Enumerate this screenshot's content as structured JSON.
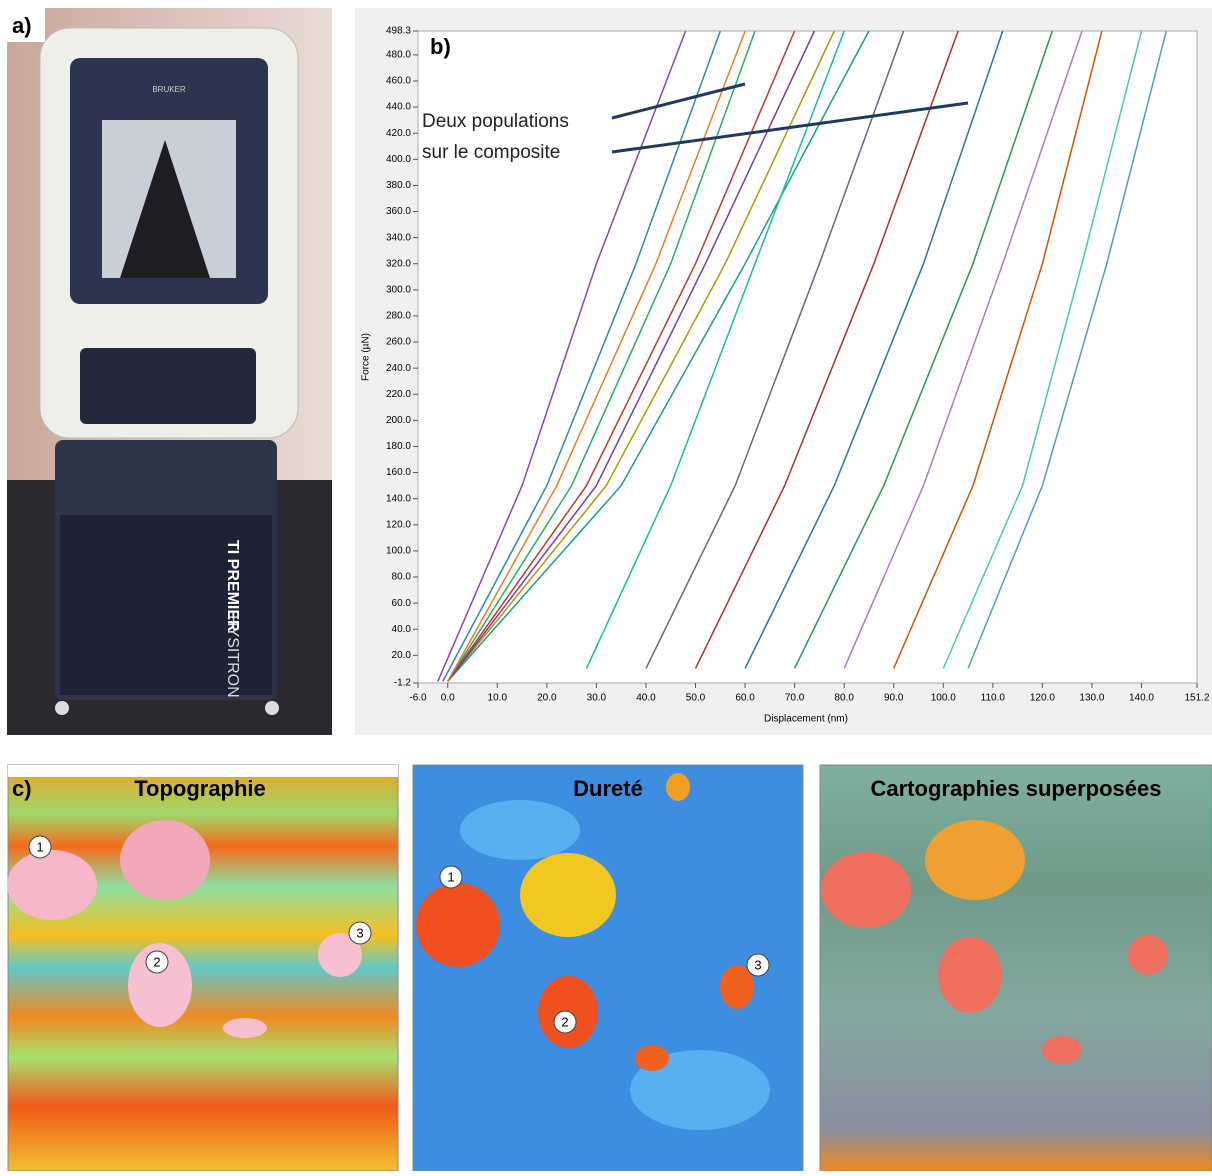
{
  "panel_a": {
    "label": "a)",
    "brand": "BRUKER",
    "model_line1": "HYSITRON",
    "model_line2": "TI PREMIER"
  },
  "chart_data": {
    "type": "line",
    "panel_label": "b)",
    "x_label": "Displacement (nm)",
    "y_label": "Force (µN)",
    "annotations": [
      "Deux populations",
      "sur le composite"
    ],
    "xlim": [
      -6,
      151.2
    ],
    "ylim": [
      -1.2,
      498.3
    ],
    "xticks": [
      {
        "value": -6,
        "label": "-6.0"
      },
      {
        "value": 0,
        "label": "0.0"
      },
      {
        "value": 10,
        "label": "10.0"
      },
      {
        "value": 20,
        "label": "20.0"
      },
      {
        "value": 30,
        "label": "30.0"
      },
      {
        "value": 40,
        "label": "40.0"
      },
      {
        "value": 50,
        "label": "50.0"
      },
      {
        "value": 60,
        "label": "60.0"
      },
      {
        "value": 70,
        "label": "70.0"
      },
      {
        "value": 80,
        "label": "80.0"
      },
      {
        "value": 90,
        "label": "90.0"
      },
      {
        "value": 100,
        "label": "100.0"
      },
      {
        "value": 110,
        "label": "110.0"
      },
      {
        "value": 120,
        "label": "120.0"
      },
      {
        "value": 130,
        "label": "130.0"
      },
      {
        "value": 140,
        "label": "140.0"
      },
      151.2
    ],
    "yticks": [
      -1.2,
      {
        "value": 20,
        "label": "20.0"
      },
      {
        "value": 40,
        "label": "40.0"
      },
      {
        "value": 60,
        "label": "60.0"
      },
      {
        "value": 80,
        "label": "80.0"
      },
      {
        "value": 100,
        "label": "100.0"
      },
      {
        "value": 120,
        "label": "120.0"
      },
      {
        "value": 140,
        "label": "140.0"
      },
      {
        "value": 160,
        "label": "160.0"
      },
      {
        "value": 180,
        "label": "180.0"
      },
      {
        "value": 200,
        "label": "200.0"
      },
      {
        "value": 220,
        "label": "220.0"
      },
      {
        "value": 240,
        "label": "240.0"
      },
      {
        "value": 260,
        "label": "260.0"
      },
      {
        "value": 280,
        "label": "280.0"
      },
      {
        "value": 300,
        "label": "300.0"
      },
      {
        "value": 320,
        "label": "320.0"
      },
      {
        "value": 340,
        "label": "340.0"
      },
      {
        "value": 360,
        "label": "360.0"
      },
      {
        "value": 380,
        "label": "380.0"
      },
      {
        "value": 400,
        "label": "400.0"
      },
      {
        "value": 420,
        "label": "420.0"
      },
      {
        "value": 440,
        "label": "440.0"
      },
      {
        "value": 460,
        "label": "460.0"
      },
      {
        "value": 480,
        "label": "480.0"
      },
      498.3
    ],
    "series": [
      {
        "color": "#8e44ad",
        "x": [
          -2,
          15,
          30,
          48
        ],
        "values": [
          0,
          150,
          320,
          498.3
        ]
      },
      {
        "color": "#2e86c1",
        "x": [
          -1,
          20,
          38,
          55
        ],
        "values": [
          0,
          150,
          320,
          498.3
        ]
      },
      {
        "color": "#27ae60",
        "x": [
          0,
          25,
          45,
          62
        ],
        "values": [
          0,
          150,
          320,
          498.3
        ]
      },
      {
        "color": "#c0392b",
        "x": [
          0,
          28,
          50,
          70
        ],
        "values": [
          0,
          150,
          320,
          498.3
        ]
      },
      {
        "color": "#b7950b",
        "x": [
          0,
          32,
          56,
          78
        ],
        "values": [
          0,
          150,
          320,
          498.3
        ]
      },
      {
        "color": "#16a085",
        "x": [
          0,
          35,
          60,
          85
        ],
        "values": [
          0,
          150,
          320,
          498.3
        ]
      },
      {
        "color": "#7d3c98",
        "x": [
          0,
          30,
          52,
          74
        ],
        "values": [
          0,
          150,
          320,
          498.3
        ]
      },
      {
        "color": "#e67e22",
        "x": [
          0,
          22,
          42,
          60
        ],
        "values": [
          0,
          150,
          320,
          498.3
        ]
      },
      {
        "color": "#1abc9c",
        "x": [
          28,
          45,
          62,
          80
        ],
        "values": [
          10,
          150,
          320,
          498.3
        ]
      },
      {
        "color": "#5d6d7e",
        "x": [
          40,
          58,
          75,
          92
        ],
        "values": [
          10,
          150,
          320,
          498.3
        ]
      },
      {
        "color": "#a93226",
        "x": [
          50,
          68,
          86,
          103
        ],
        "values": [
          10,
          150,
          320,
          498.3
        ]
      },
      {
        "color": "#2874a6",
        "x": [
          60,
          78,
          96,
          112
        ],
        "values": [
          10,
          150,
          320,
          498.3
        ]
      },
      {
        "color": "#239b56",
        "x": [
          70,
          88,
          106,
          122
        ],
        "values": [
          10,
          150,
          320,
          498.3
        ]
      },
      {
        "color": "#af7ac5",
        "x": [
          80,
          96,
          112,
          128
        ],
        "values": [
          10,
          150,
          320,
          498.3
        ]
      },
      {
        "color": "#d35400",
        "x": [
          90,
          106,
          120,
          132
        ],
        "values": [
          10,
          150,
          320,
          498.3
        ]
      },
      {
        "color": "#48c9b0",
        "x": [
          100,
          116,
          128,
          140
        ],
        "values": [
          10,
          150,
          320,
          498.3
        ]
      },
      {
        "color": "#5499c7",
        "x": [
          105,
          120,
          133,
          145
        ],
        "values": [
          10,
          150,
          320,
          498.3
        ]
      }
    ]
  },
  "panel_c": {
    "label": "c)",
    "maps": [
      {
        "title": "Topographie",
        "markers": [
          "1",
          "2",
          "3"
        ]
      },
      {
        "title": "Dureté",
        "markers": [
          "1",
          "2",
          "3"
        ]
      },
      {
        "title": "Cartographies superposées"
      }
    ]
  }
}
